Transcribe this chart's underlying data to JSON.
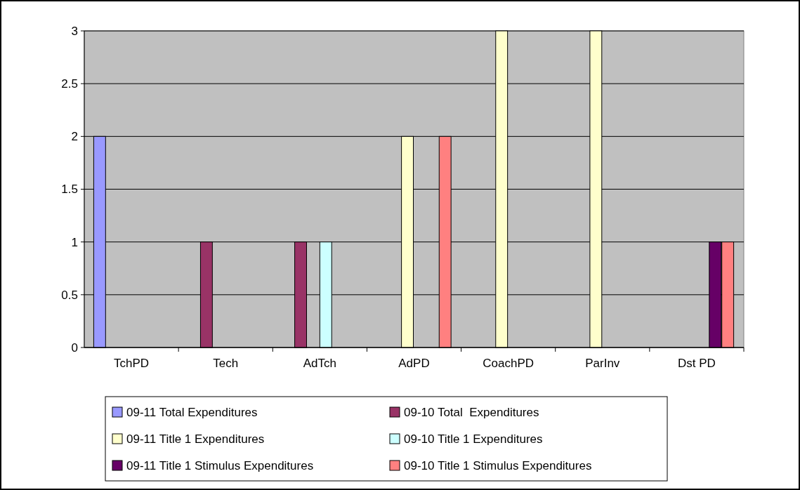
{
  "chart_data": {
    "type": "bar",
    "categories": [
      "TchPD",
      "Tech",
      "AdTch",
      "AdPD",
      "CoachPD",
      "ParInv",
      "Dst PD"
    ],
    "series": [
      {
        "name": "09-11 Total Expenditures",
        "color": "#9999ff",
        "values": [
          2,
          null,
          null,
          null,
          null,
          null,
          null
        ]
      },
      {
        "name": "09-10 Total  Expenditures",
        "color": "#993366",
        "values": [
          null,
          1,
          1,
          null,
          null,
          null,
          null
        ]
      },
      {
        "name": "09-11 Title 1 Expenditures",
        "color": "#ffffcc",
        "values": [
          null,
          null,
          null,
          2,
          3,
          3,
          null
        ]
      },
      {
        "name": "09-10 Title 1 Expenditures",
        "color": "#ccffff",
        "values": [
          null,
          null,
          1,
          null,
          null,
          null,
          null
        ]
      },
      {
        "name": "09-11 Title 1 Stimulus Expenditures",
        "color": "#660066",
        "values": [
          null,
          null,
          null,
          null,
          null,
          null,
          1
        ]
      },
      {
        "name": "09-10 Title 1 Stimulus Expenditures",
        "color": "#ff8080",
        "values": [
          null,
          null,
          null,
          2,
          null,
          null,
          1
        ]
      }
    ],
    "ylim": [
      0,
      3
    ],
    "yticks": [
      0,
      0.5,
      1,
      1.5,
      2,
      2.5,
      3
    ],
    "grid": "y",
    "legend": "bottom"
  }
}
